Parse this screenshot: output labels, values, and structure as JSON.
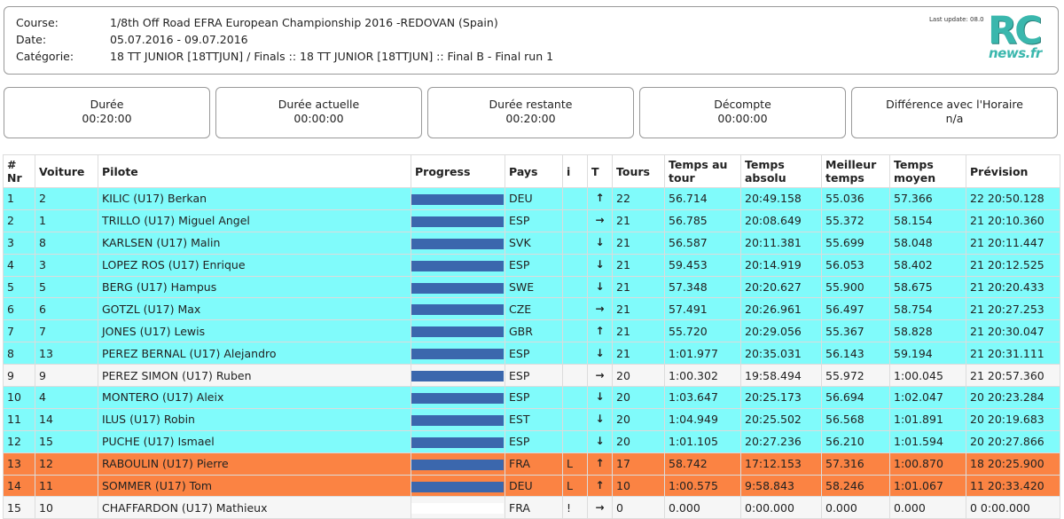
{
  "header": {
    "course_label": "Course:",
    "course_value": "1/8th Off Road EFRA European Championship 2016 -REDOVAN (Spain)",
    "date_label": "Date:",
    "date_value": "05.07.2016 - 09.07.2016",
    "category_label": "Catégorie:",
    "category_value": "18 TT JUNIOR [18TTJUN] / Finals :: 18 TT JUNIOR [18TTJUN] :: Final B - Final run 1",
    "last_update": "Last update: 08.0",
    "logo_rc": "RC",
    "logo_news": "news.fr"
  },
  "timers": [
    {
      "label": "Durée",
      "value": "00:20:00"
    },
    {
      "label": "Durée actuelle",
      "value": "00:00:00"
    },
    {
      "label": "Durée restante",
      "value": "00:20:00"
    },
    {
      "label": "Décompte",
      "value": "00:00:00"
    },
    {
      "label": "Différence avec l'Horaire",
      "value": "n/a"
    }
  ],
  "table": {
    "headers": [
      "# Nr",
      "Voiture",
      "Pilote",
      "Progress",
      "Pays",
      "i",
      "T",
      "Tours",
      "Temps au tour",
      "Temps absolu",
      "Meilleur temps",
      "Temps moyen",
      "Prévision"
    ],
    "rows": [
      {
        "style": "cyan",
        "nr": "1",
        "car": "2",
        "pilot": "KILIC (U17) Berkan",
        "progress": 1.0,
        "country": "DEU",
        "i": "",
        "trend": "↑",
        "laps": "22",
        "lap_time": "56.714",
        "abs_time": "20:49.158",
        "best": "55.036",
        "avg": "57.366",
        "forecast": "22 20:50.128"
      },
      {
        "style": "cyan",
        "nr": "2",
        "car": "1",
        "pilot": "TRILLO (U17) Miguel Angel",
        "progress": 1.0,
        "country": "ESP",
        "i": "",
        "trend": "→",
        "laps": "21",
        "lap_time": "56.785",
        "abs_time": "20:08.649",
        "best": "55.372",
        "avg": "58.154",
        "forecast": "21 20:10.360"
      },
      {
        "style": "cyan",
        "nr": "3",
        "car": "8",
        "pilot": "KARLSEN (U17) Malin",
        "progress": 1.0,
        "country": "SVK",
        "i": "",
        "trend": "↓",
        "laps": "21",
        "lap_time": "56.587",
        "abs_time": "20:11.381",
        "best": "55.699",
        "avg": "58.048",
        "forecast": "21 20:11.447"
      },
      {
        "style": "cyan",
        "nr": "4",
        "car": "3",
        "pilot": "LOPEZ ROS (U17) Enrique",
        "progress": 1.0,
        "country": "ESP",
        "i": "",
        "trend": "↓",
        "laps": "21",
        "lap_time": "59.453",
        "abs_time": "20:14.919",
        "best": "56.053",
        "avg": "58.402",
        "forecast": "21 20:12.525"
      },
      {
        "style": "cyan",
        "nr": "5",
        "car": "5",
        "pilot": "BERG (U17) Hampus",
        "progress": 1.0,
        "country": "SWE",
        "i": "",
        "trend": "↓",
        "laps": "21",
        "lap_time": "57.348",
        "abs_time": "20:20.627",
        "best": "55.900",
        "avg": "58.675",
        "forecast": "21 20:20.433"
      },
      {
        "style": "cyan",
        "nr": "6",
        "car": "6",
        "pilot": "GOTZL (U17) Max",
        "progress": 1.0,
        "country": "CZE",
        "i": "",
        "trend": "→",
        "laps": "21",
        "lap_time": "57.491",
        "abs_time": "20:26.961",
        "best": "56.497",
        "avg": "58.754",
        "forecast": "21 20:27.253"
      },
      {
        "style": "cyan",
        "nr": "7",
        "car": "7",
        "pilot": "JONES (U17) Lewis",
        "progress": 1.0,
        "country": "GBR",
        "i": "",
        "trend": "↑",
        "laps": "21",
        "lap_time": "55.720",
        "abs_time": "20:29.056",
        "best": "55.367",
        "avg": "58.828",
        "forecast": "21 20:30.047"
      },
      {
        "style": "cyan",
        "nr": "8",
        "car": "13",
        "pilot": "PEREZ BERNAL (U17) Alejandro",
        "progress": 1.0,
        "country": "ESP",
        "i": "",
        "trend": "↓",
        "laps": "21",
        "lap_time": "1:01.977",
        "abs_time": "20:35.031",
        "best": "56.143",
        "avg": "59.194",
        "forecast": "21 20:31.111"
      },
      {
        "style": "white",
        "nr": "9",
        "car": "9",
        "pilot": "PEREZ SIMON (U17) Ruben",
        "progress": 1.0,
        "country": "ESP",
        "i": "",
        "trend": "→",
        "laps": "20",
        "lap_time": "1:00.302",
        "abs_time": "19:58.494",
        "best": "55.972",
        "avg": "1:00.045",
        "forecast": "21 20:57.360"
      },
      {
        "style": "cyan",
        "nr": "10",
        "car": "4",
        "pilot": "MONTERO (U17) Aleix",
        "progress": 1.0,
        "country": "ESP",
        "i": "",
        "trend": "↓",
        "laps": "20",
        "lap_time": "1:03.647",
        "abs_time": "20:25.173",
        "best": "56.694",
        "avg": "1:02.047",
        "forecast": "20 20:23.284"
      },
      {
        "style": "cyan",
        "nr": "11",
        "car": "14",
        "pilot": "ILUS (U17) Robin",
        "progress": 1.0,
        "country": "EST",
        "i": "",
        "trend": "↓",
        "laps": "20",
        "lap_time": "1:04.949",
        "abs_time": "20:25.502",
        "best": "56.568",
        "avg": "1:01.891",
        "forecast": "20 20:19.683"
      },
      {
        "style": "cyan",
        "nr": "12",
        "car": "15",
        "pilot": "PUCHE (U17) Ismael",
        "progress": 1.0,
        "country": "ESP",
        "i": "",
        "trend": "↓",
        "laps": "20",
        "lap_time": "1:01.105",
        "abs_time": "20:27.236",
        "best": "56.210",
        "avg": "1:01.594",
        "forecast": "20 20:27.866"
      },
      {
        "style": "orange",
        "nr": "13",
        "car": "12",
        "pilot": "RABOULIN (U17) Pierre",
        "progress": 1.0,
        "country": "FRA",
        "i": "L",
        "trend": "↑",
        "laps": "17",
        "lap_time": "58.742",
        "abs_time": "17:12.153",
        "best": "57.316",
        "avg": "1:00.870",
        "forecast": "18 20:25.900"
      },
      {
        "style": "orange",
        "nr": "14",
        "car": "11",
        "pilot": "SOMMER (U17) Tom",
        "progress": 1.0,
        "country": "DEU",
        "i": "L",
        "trend": "↑",
        "laps": "10",
        "lap_time": "1:00.575",
        "abs_time": "9:58.843",
        "best": "58.246",
        "avg": "1:01.067",
        "forecast": "11 20:33.420"
      },
      {
        "style": "white",
        "nr": "15",
        "car": "10",
        "pilot": "CHAFFARDON (U17) Mathieux",
        "progress": 0.0,
        "country": "FRA",
        "i": "!",
        "trend": "→",
        "laps": "0",
        "lap_time": "0.000",
        "abs_time": "0:00.000",
        "best": "0.000",
        "avg": "0.000",
        "forecast": "0 0:00.000"
      }
    ]
  }
}
